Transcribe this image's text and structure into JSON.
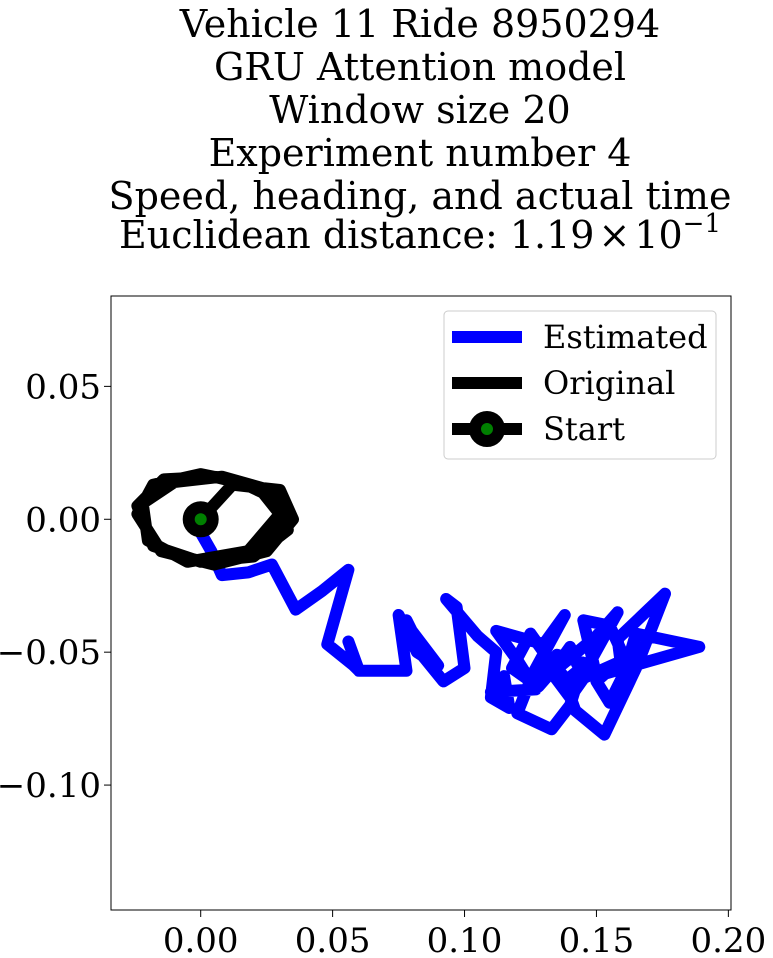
{
  "chart_data": {
    "type": "line",
    "title_lines": [
      "Vehicle 11 Ride 8950294",
      "GRU Attention model",
      "Window size 20",
      "Experiment number 4",
      "Speed, heading, and actual time"
    ],
    "distance_label": "Euclidean distance: ",
    "distance_mantissa": "1.19",
    "distance_base": "10",
    "distance_exponent": "−1",
    "times_symbol": "×",
    "xlim": [
      -0.034,
      0.201
    ],
    "ylim": [
      -0.147,
      0.084
    ],
    "xticks": [
      0.0,
      0.05,
      0.1,
      0.15,
      0.2
    ],
    "xtick_labels": [
      "0.00",
      "0.05",
      "0.10",
      "0.15",
      "0.20"
    ],
    "yticks": [
      0.05,
      0.0,
      -0.05,
      -0.1
    ],
    "ytick_labels": [
      "0.05",
      "0.00",
      "−0.05",
      "−0.10"
    ],
    "grid": false,
    "legend_position": "upper right",
    "legend": [
      "Estimated",
      "Original",
      "Start"
    ],
    "colors": {
      "estimated": "#0000ff",
      "original": "#000000",
      "start_marker": "#008000"
    },
    "series": [
      {
        "name": "Estimated",
        "x": [
          0.0,
          0.004,
          0.008,
          0.018,
          0.027,
          0.036,
          0.046,
          0.056,
          0.048,
          0.058,
          0.06,
          0.056,
          0.06,
          0.078,
          0.075,
          0.082,
          0.09,
          0.08,
          0.078,
          0.083,
          0.092,
          0.1,
          0.097,
          0.093,
          0.105,
          0.112,
          0.11,
          0.117,
          0.115,
          0.11,
          0.127,
          0.12,
          0.112,
          0.13,
          0.138,
          0.126,
          0.12,
          0.133,
          0.14,
          0.145,
          0.135,
          0.128,
          0.15,
          0.158,
          0.148,
          0.138,
          0.142,
          0.153,
          0.165,
          0.176,
          0.158,
          0.16,
          0.165,
          0.189,
          0.15,
          0.145,
          0.155,
          0.162,
          0.155,
          0.15,
          0.158,
          0.14,
          0.13,
          0.125,
          0.118,
          0.128,
          0.135,
          0.14,
          0.145,
          0.14,
          0.134
        ],
        "y": [
          -0.005,
          -0.012,
          -0.021,
          -0.02,
          -0.017,
          -0.034,
          -0.027,
          -0.019,
          -0.047,
          -0.055,
          -0.057,
          -0.046,
          -0.057,
          -0.057,
          -0.036,
          -0.05,
          -0.055,
          -0.042,
          -0.038,
          -0.05,
          -0.061,
          -0.056,
          -0.033,
          -0.03,
          -0.044,
          -0.05,
          -0.067,
          -0.071,
          -0.059,
          -0.065,
          -0.064,
          -0.053,
          -0.042,
          -0.047,
          -0.036,
          -0.058,
          -0.073,
          -0.079,
          -0.07,
          -0.054,
          -0.051,
          -0.062,
          -0.044,
          -0.035,
          -0.053,
          -0.061,
          -0.072,
          -0.081,
          -0.056,
          -0.028,
          -0.045,
          -0.06,
          -0.043,
          -0.048,
          -0.059,
          -0.038,
          -0.04,
          -0.055,
          -0.069,
          -0.061,
          -0.054,
          -0.062,
          -0.05,
          -0.043,
          -0.056,
          -0.063,
          -0.055,
          -0.048,
          -0.06,
          -0.067,
          -0.059
        ]
      },
      {
        "name": "Original",
        "x": [
          0.0,
          0.012,
          0.03,
          0.035,
          0.025,
          0.005,
          -0.015,
          -0.024,
          -0.018,
          0.0,
          0.015,
          0.028,
          0.033,
          0.02,
          0.0,
          -0.018,
          -0.024,
          -0.014,
          0.005,
          0.022,
          0.03,
          0.018,
          -0.005,
          -0.02,
          -0.022,
          -0.01,
          0.008,
          0.026,
          0.032,
          0.02
        ],
        "y": [
          0.0,
          0.013,
          0.011,
          0.0,
          -0.012,
          -0.017,
          -0.012,
          0.002,
          0.013,
          0.017,
          0.014,
          0.008,
          -0.004,
          -0.014,
          -0.016,
          -0.01,
          0.005,
          0.015,
          0.016,
          0.012,
          0.002,
          -0.012,
          -0.016,
          -0.008,
          0.006,
          0.014,
          0.016,
          0.011,
          0.0,
          -0.01
        ]
      }
    ],
    "start_point": {
      "x": 0.0,
      "y": 0.0
    }
  }
}
